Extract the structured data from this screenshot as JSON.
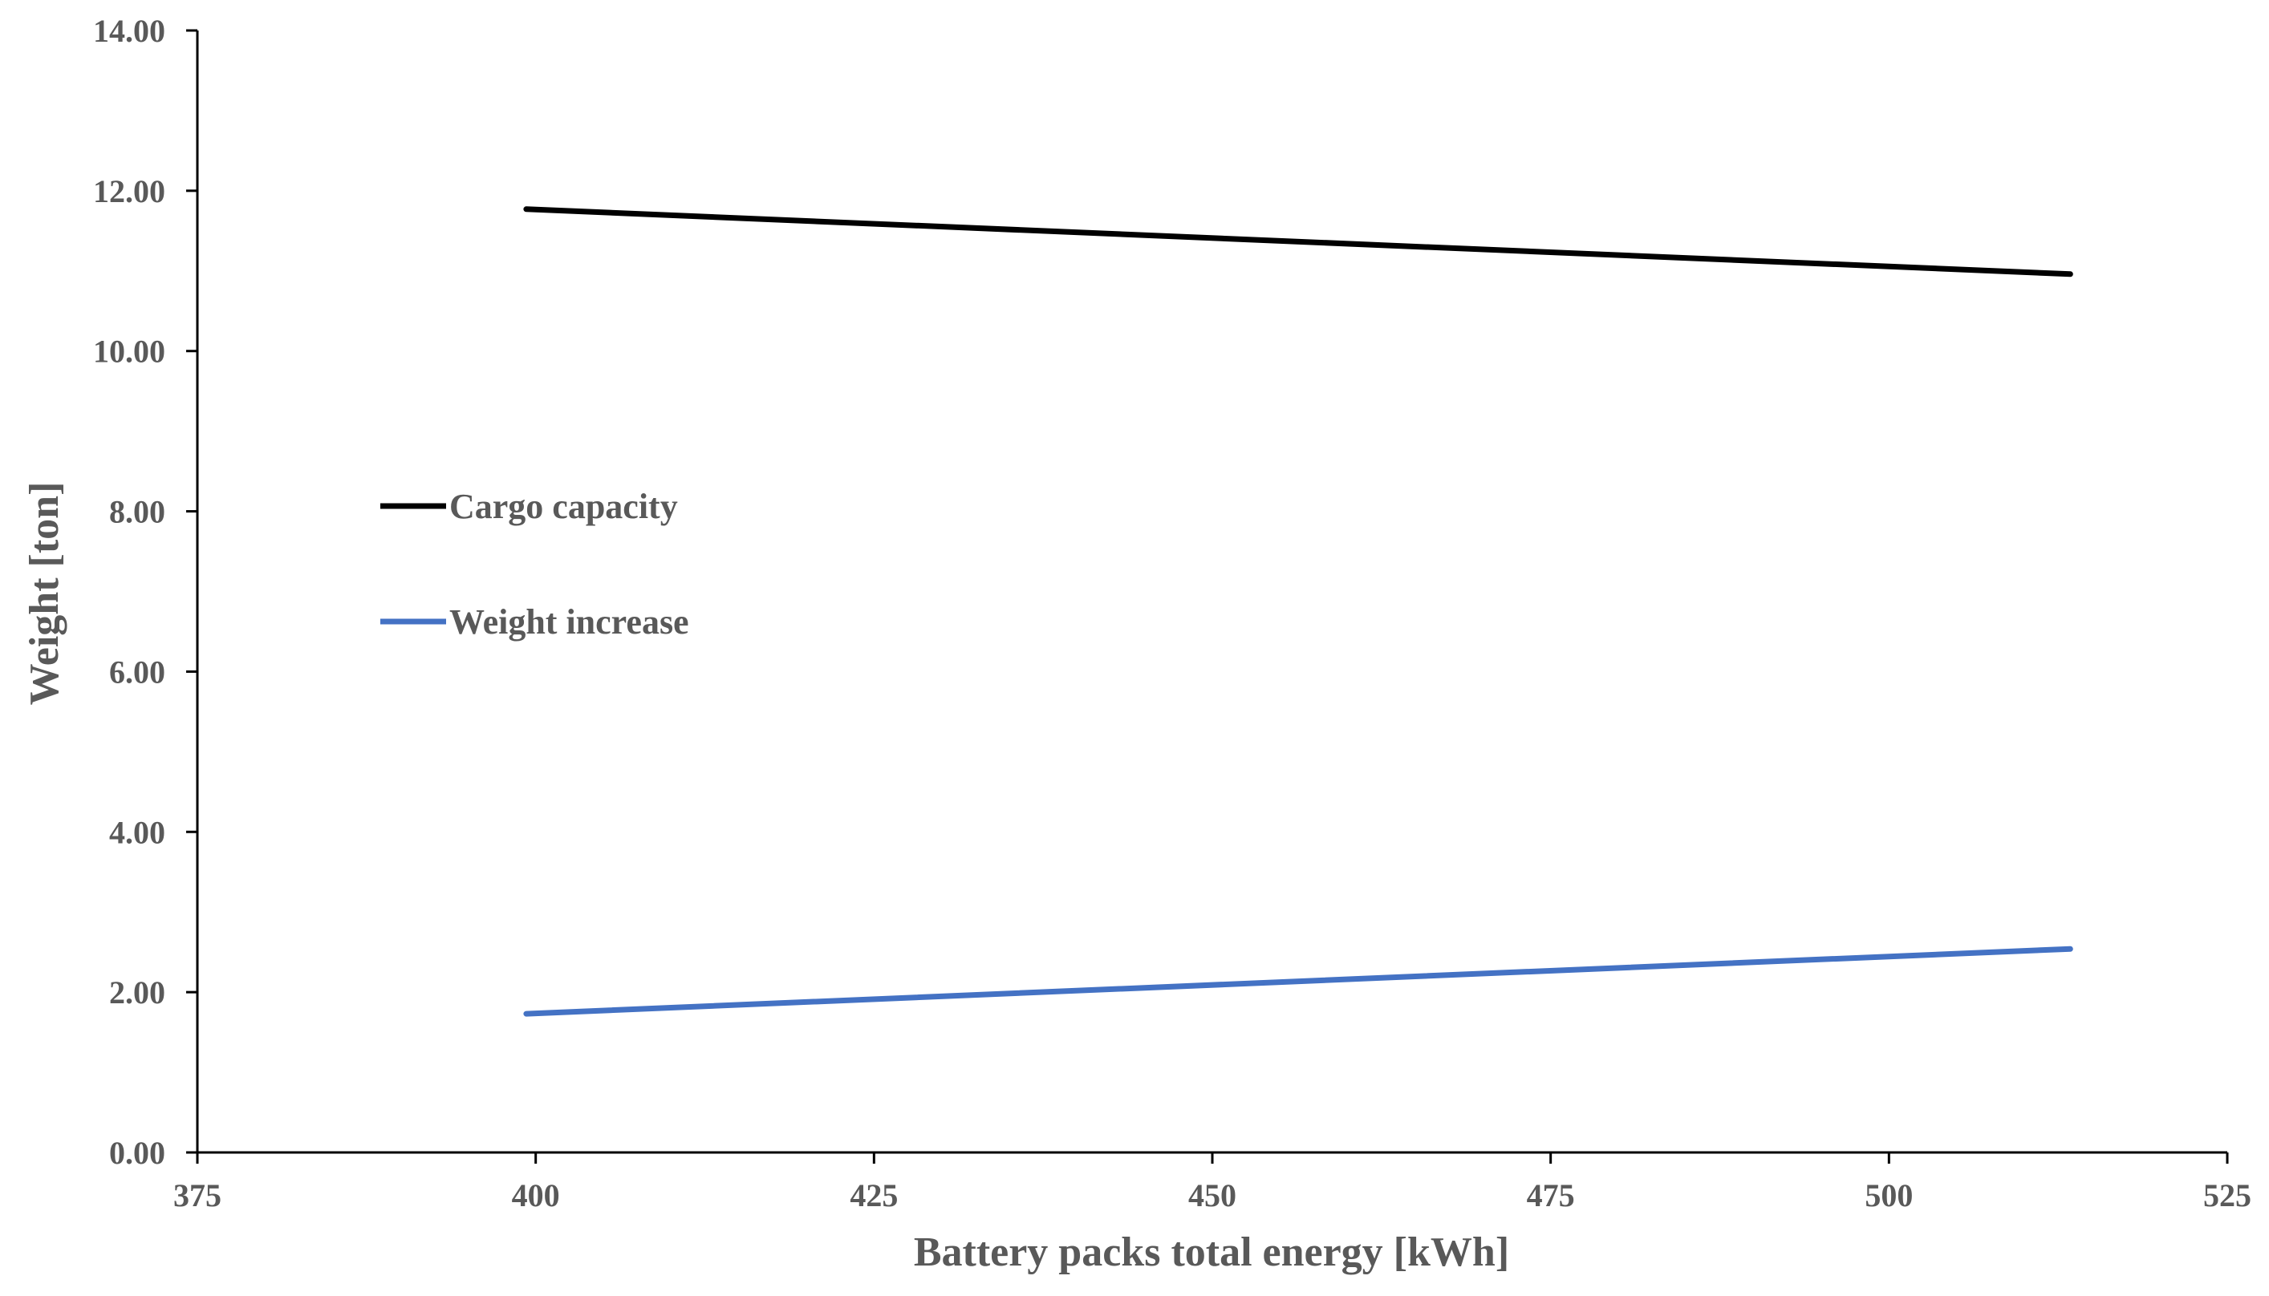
{
  "chart_data": {
    "type": "line",
    "title": "",
    "xlabel": "Battery packs total energy [kWh]",
    "ylabel": "Weight [ton]",
    "xlim": [
      375,
      525
    ],
    "ylim": [
      0,
      14
    ],
    "x_ticks": [
      375,
      400,
      425,
      450,
      475,
      500,
      525
    ],
    "x_tick_labels": [
      "375",
      "400",
      "425",
      "450",
      "475",
      "500",
      "525"
    ],
    "y_ticks": [
      0,
      2,
      4,
      6,
      8,
      10,
      12,
      14
    ],
    "y_tick_labels": [
      "0.00",
      "2.00",
      "4.00",
      "6.00",
      "8.00",
      "10.00",
      "12.00",
      "14.00"
    ],
    "grid": false,
    "legend_position": "left-middle",
    "series": [
      {
        "name": "Cargo capacity",
        "color": "#000000",
        "x": [
          399.3,
          513.4
        ],
        "y": [
          11.77,
          10.96
        ]
      },
      {
        "name": "Weight increase",
        "color": "#4472C4",
        "x": [
          399.3,
          513.4
        ],
        "y": [
          1.73,
          2.54
        ]
      }
    ]
  }
}
